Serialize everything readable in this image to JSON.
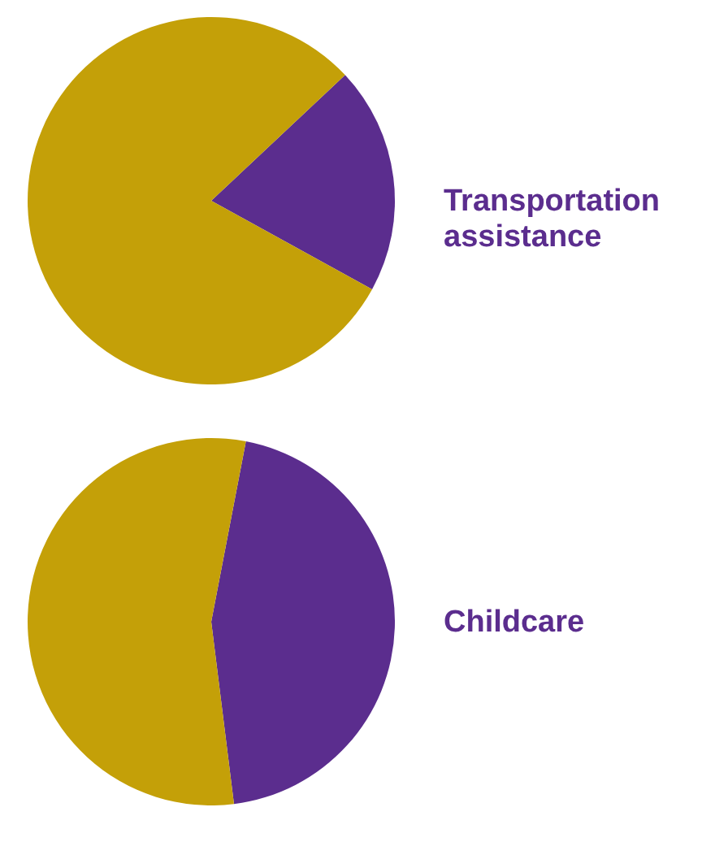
{
  "chart_data": [
    {
      "type": "pie",
      "title": "Transportation assistance",
      "categories": [
        null,
        null
      ],
      "values": [
        20,
        80
      ],
      "colors": [
        "#5b2d8e",
        "#c4a008"
      ]
    },
    {
      "type": "pie",
      "title": "Childcare",
      "categories": [
        null,
        null
      ],
      "values": [
        45,
        55
      ],
      "colors": [
        "#5b2d8e",
        "#c4a008"
      ]
    }
  ]
}
